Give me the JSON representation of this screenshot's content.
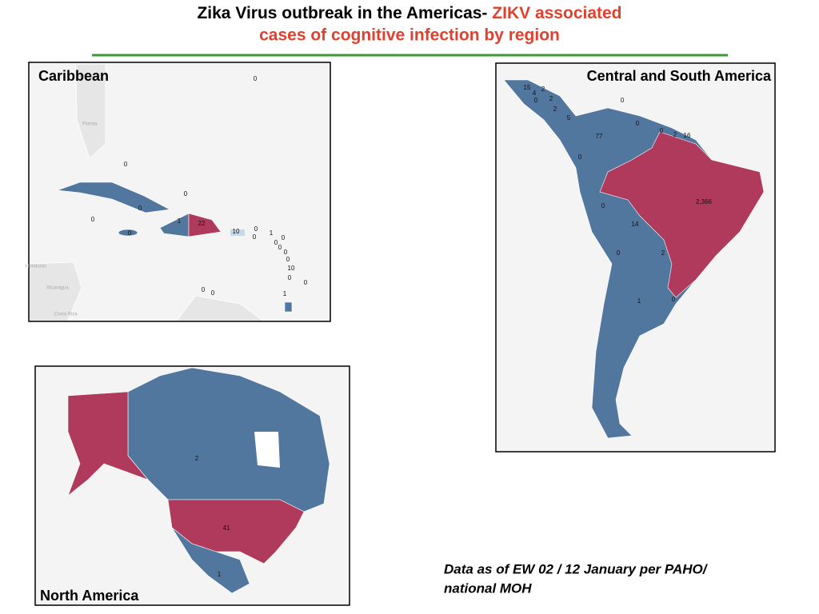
{
  "title": [
    "Zika Virus outbreak in the Americas-",
    "ZIKV associated",
    "cases of cognitive infection by region"
  ],
  "panels": [
    {
      "name": "Caribbean",
      "place_names": [
        "Florida",
        "Honduras",
        "Nicaragua",
        "Costa Rica"
      ],
      "labels": [
        "0",
        "0",
        "0",
        "0",
        "0",
        "1",
        "22",
        "0",
        "10",
        "0",
        "0",
        "1",
        "0",
        "0",
        "0",
        "0",
        "0",
        "10",
        "0",
        "0",
        "0",
        "0",
        "1"
      ]
    },
    {
      "name": "Central and South America",
      "place_names": [],
      "labels": [
        "0",
        "15",
        "4",
        "2",
        "2",
        "2",
        "5",
        "0",
        "0",
        "0",
        "2",
        "16",
        "77",
        "0",
        "0",
        "2,366",
        "14",
        "0",
        "2",
        "1",
        "0"
      ]
    },
    {
      "name": "North America",
      "place_names": [],
      "labels": [
        "2",
        "41",
        "1"
      ]
    }
  ],
  "footnote": [
    "Data as of EW 02 / 12 January per PAHO/",
    "national MOH"
  ]
}
